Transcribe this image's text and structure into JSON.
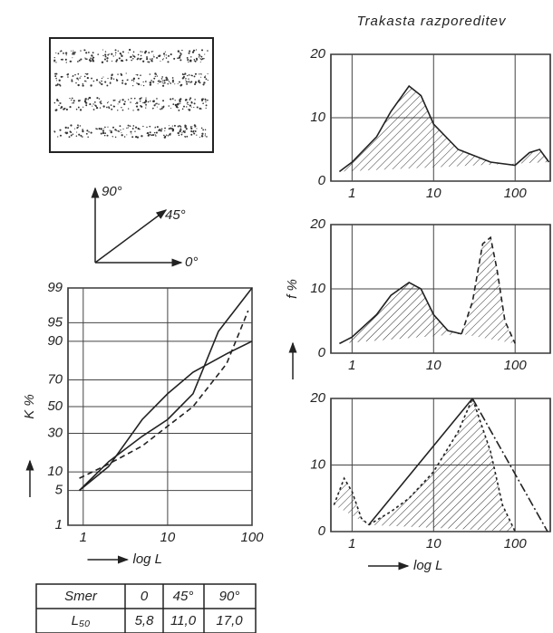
{
  "chart_data": [
    {
      "type": "line",
      "xscale": "log",
      "yscale": "probability",
      "ylabel": "K %",
      "xlabel": "log L",
      "xlim": [
        0.66,
        100
      ],
      "ylim": [
        1,
        99
      ],
      "xticks": [
        1,
        10,
        100
      ],
      "yticks": [
        1,
        5,
        10,
        30,
        50,
        70,
        90,
        95,
        99
      ],
      "grid": true,
      "series": [
        {
          "color": "#222",
          "dash": "none",
          "x": [
            0.9,
            2,
            5,
            10,
            20,
            50,
            100
          ],
          "values": [
            5,
            12,
            40,
            60,
            75,
            85,
            90
          ]
        },
        {
          "color": "#222",
          "dash": "6 4",
          "x": [
            0.9,
            2,
            5,
            10,
            20,
            50,
            90
          ],
          "values": [
            8,
            13,
            22,
            35,
            50,
            80,
            97
          ]
        },
        {
          "color": "#222",
          "dash": "none",
          "x": [
            0.9,
            2,
            5,
            10,
            20,
            40,
            100
          ],
          "values": [
            5,
            14,
            28,
            40,
            60,
            93,
            99
          ]
        }
      ]
    },
    {
      "type": "line",
      "xscale": "log",
      "title": "Trakasta razporeditev",
      "xlim": [
        0.55,
        270
      ],
      "ylim": [
        0,
        20
      ],
      "xticks": [
        1,
        10,
        100
      ],
      "yticks": [
        0,
        10,
        20
      ],
      "grid": true,
      "series": [
        {
          "color": "#222",
          "dash": "none",
          "hatch": true,
          "x": [
            0.7,
            1,
            2,
            3,
            5,
            7,
            10,
            20,
            50,
            100,
            150,
            200,
            260
          ],
          "values": [
            1.5,
            3,
            7,
            11,
            15,
            13.5,
            9,
            5,
            3,
            2.5,
            4.5,
            5,
            3
          ]
        }
      ]
    },
    {
      "type": "line",
      "xscale": "log",
      "ylabel": "f %",
      "xlim": [
        0.55,
        270
      ],
      "ylim": [
        0,
        20
      ],
      "xticks": [
        1,
        10,
        100
      ],
      "yticks": [
        0,
        10,
        20
      ],
      "grid": true,
      "series": [
        {
          "color": "#222",
          "dash": "none",
          "hatch": true,
          "x": [
            0.7,
            1,
            2,
            3,
            5,
            7,
            10,
            15,
            22
          ],
          "values": [
            1.5,
            2.5,
            6,
            9,
            11,
            10,
            6,
            3.5,
            3
          ]
        },
        {
          "color": "#222",
          "dash": "6 4",
          "hatch": true,
          "x": [
            22,
            30,
            40,
            50,
            60,
            75,
            100
          ],
          "values": [
            3,
            8,
            17,
            18,
            13,
            5,
            1.5
          ]
        }
      ]
    },
    {
      "type": "line",
      "xscale": "log",
      "xlabel": "log L",
      "xlim": [
        0.55,
        270
      ],
      "ylim": [
        0,
        20
      ],
      "xticks": [
        1,
        10,
        100
      ],
      "yticks": [
        0,
        10,
        20
      ],
      "grid": true,
      "series": [
        {
          "color": "#222",
          "dash": "3 3",
          "hatch": true,
          "x": [
            0.6,
            0.8,
            1,
            1.3,
            1.6
          ],
          "values": [
            4,
            8,
            6,
            2,
            1
          ]
        },
        {
          "color": "#222",
          "dash": "3 3",
          "hatch": true,
          "x": [
            1.6,
            3,
            5,
            10,
            20,
            30,
            50,
            70,
            100
          ],
          "values": [
            1,
            3,
            5,
            9,
            15,
            20,
            12,
            4,
            0
          ]
        },
        {
          "color": "#222",
          "dash": "none",
          "x": [
            1.6,
            30
          ],
          "values": [
            1,
            20
          ]
        },
        {
          "color": "#222",
          "dash": "10 3 2 3",
          "x": [
            30,
            250
          ],
          "values": [
            20,
            0
          ]
        }
      ]
    }
  ],
  "diagram": {
    "labels": [
      "90°",
      "45°",
      "0°"
    ]
  },
  "table": {
    "rows": [
      [
        "Smer",
        "0",
        "45°",
        "90°"
      ],
      [
        "L₅₀",
        "5,8",
        "11,0",
        "17,0"
      ]
    ]
  }
}
